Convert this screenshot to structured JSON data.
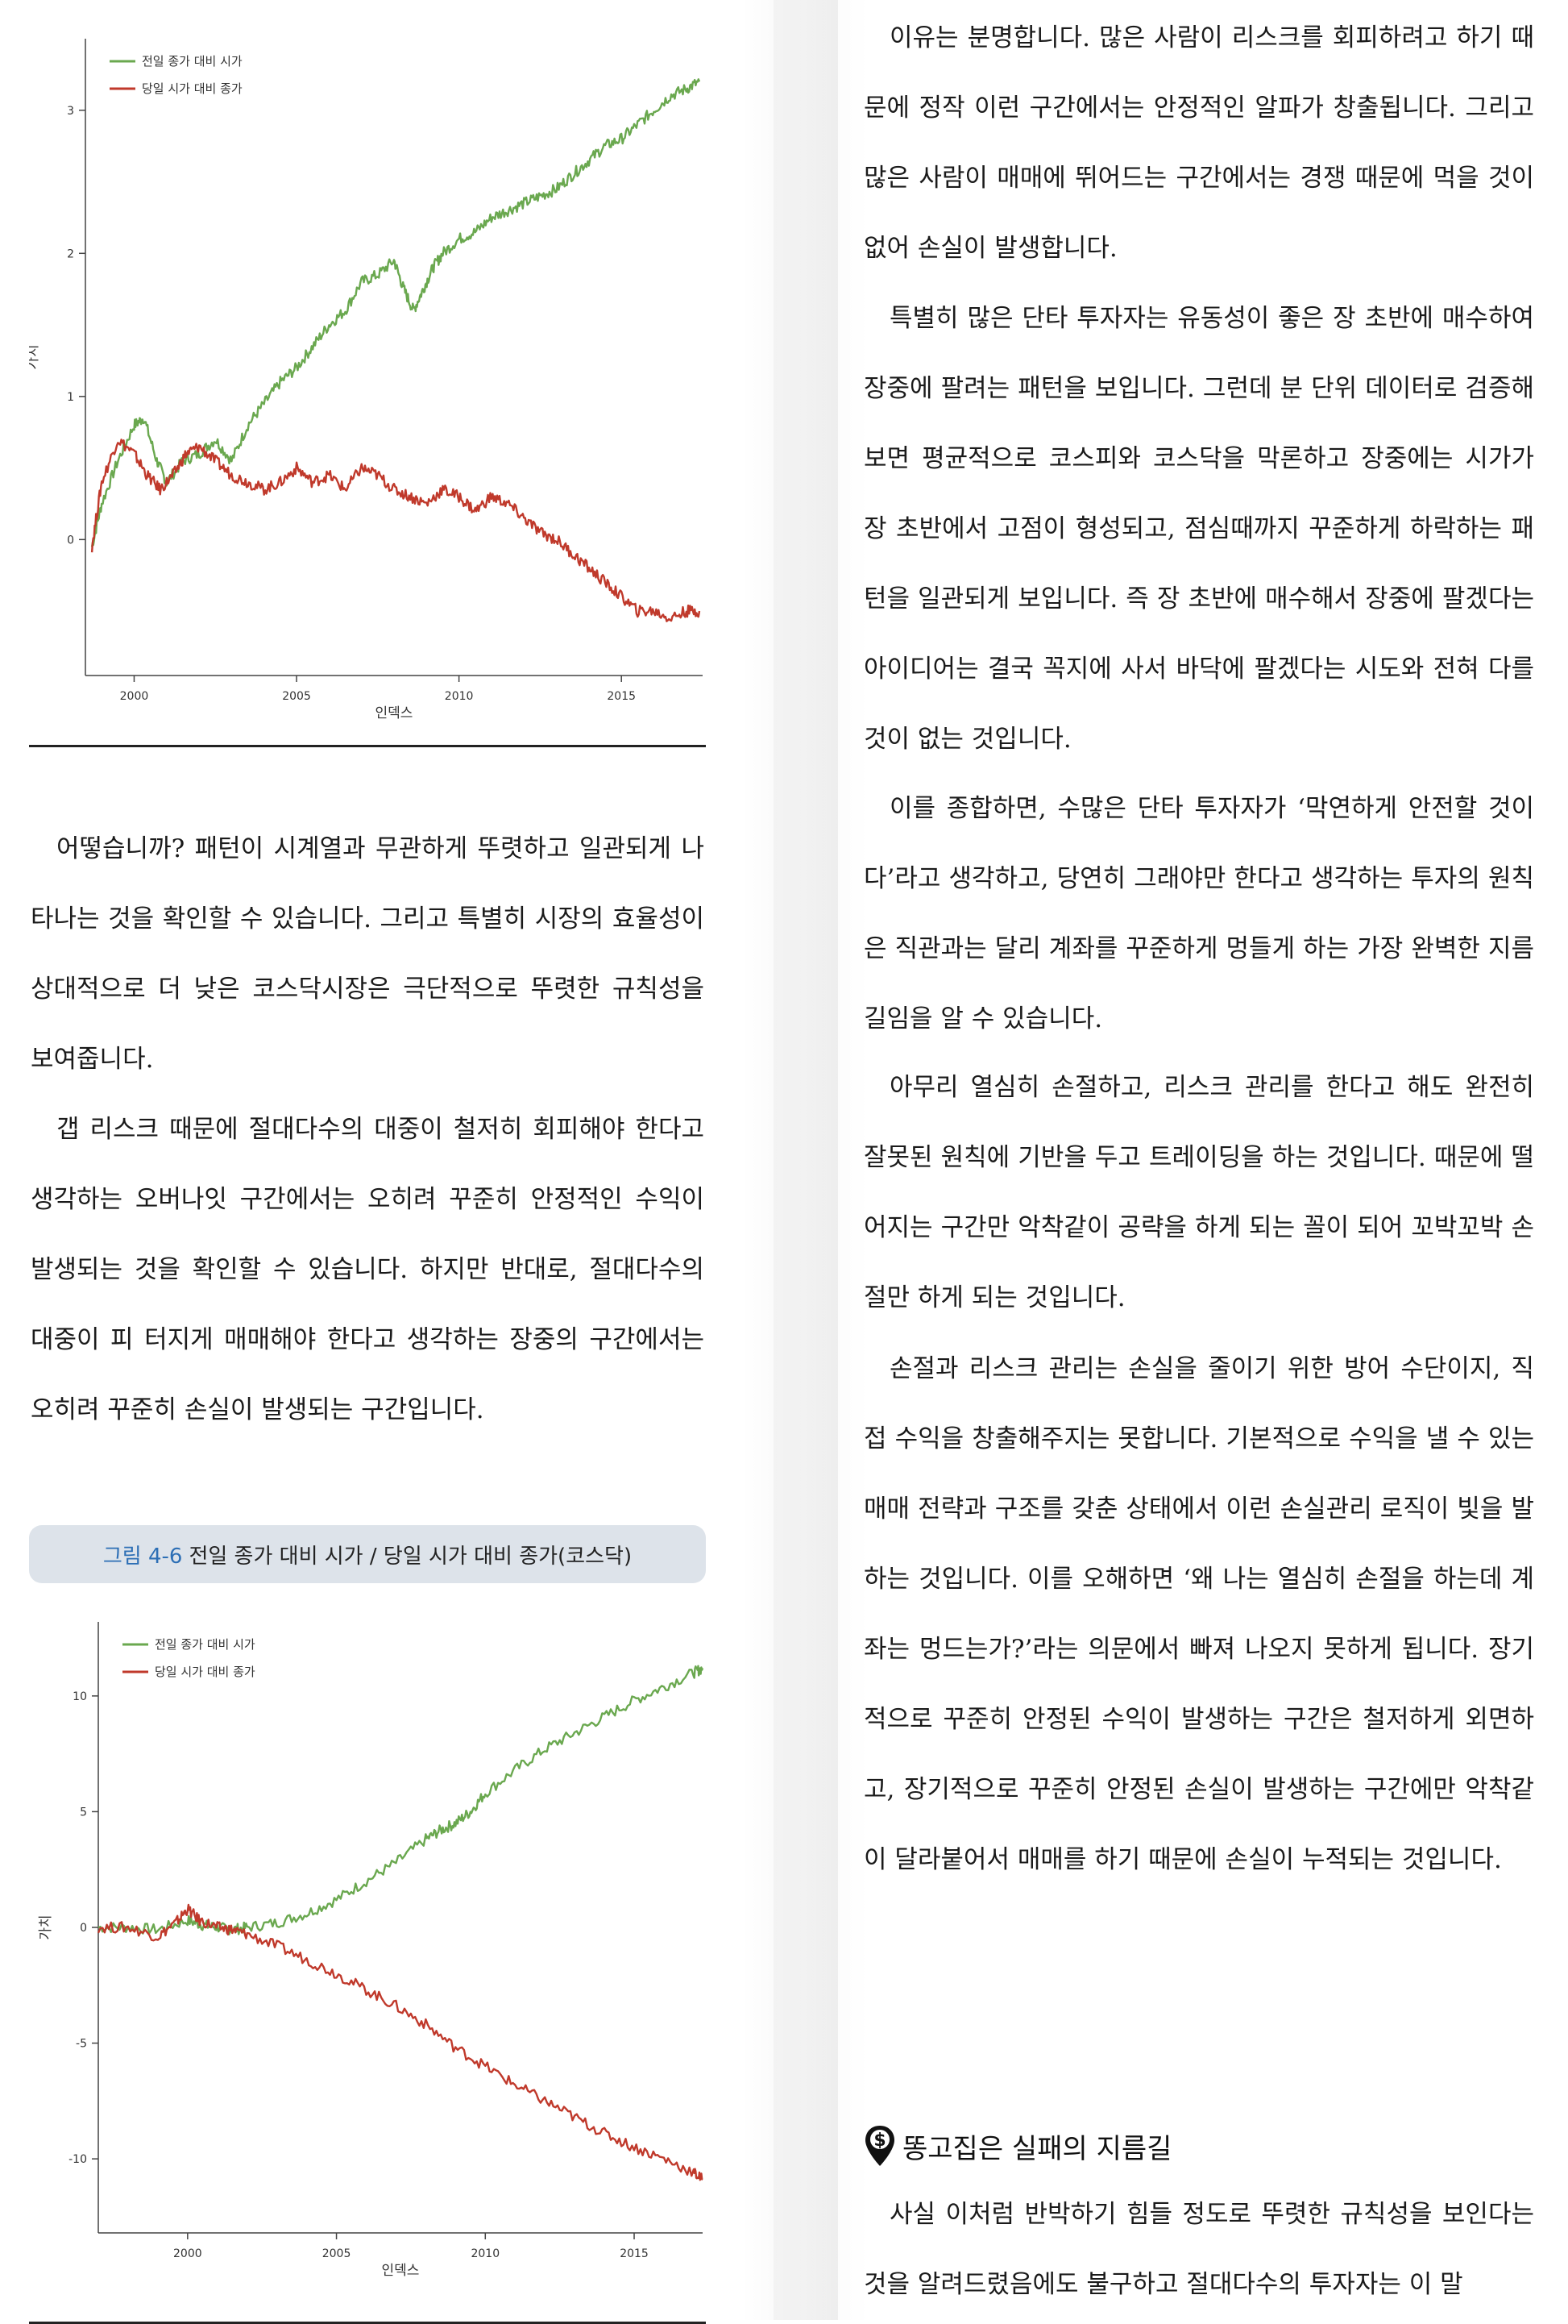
{
  "chart_data": [
    {
      "type": "line",
      "title": "",
      "xlabel": "인덱스",
      "ylabel": "가치",
      "xlim": [
        1998.5,
        2017.5
      ],
      "ylim": [
        -0.95,
        3.5
      ],
      "xticks": [
        2000,
        2005,
        2010,
        2015
      ],
      "yticks": [
        0,
        1,
        2,
        3
      ],
      "legend": "top-left",
      "series": [
        {
          "name": "전일 종가 대비 시가",
          "color": "#6aa84f",
          "x": [
            1998.7,
            1999.0,
            1999.5,
            2000.0,
            2000.3,
            2000.7,
            2001.0,
            2001.5,
            2002.0,
            2002.5,
            2003.0,
            2003.5,
            2004.0,
            2004.5,
            2005.0,
            2005.5,
            2006.0,
            2006.5,
            2007.0,
            2007.5,
            2008.0,
            2008.3,
            2008.6,
            2008.9,
            2009.2,
            2009.5,
            2010.0,
            2010.5,
            2011.0,
            2011.5,
            2012.0,
            2012.5,
            2013.0,
            2013.5,
            2014.0,
            2014.5,
            2015.0,
            2015.5,
            2016.0,
            2016.5,
            2017.0,
            2017.4
          ],
          "values": [
            -0.05,
            0.25,
            0.55,
            0.8,
            0.85,
            0.55,
            0.4,
            0.55,
            0.6,
            0.7,
            0.55,
            0.8,
            0.95,
            1.1,
            1.2,
            1.35,
            1.5,
            1.6,
            1.8,
            1.85,
            1.95,
            1.75,
            1.6,
            1.75,
            1.9,
            2.0,
            2.1,
            2.15,
            2.25,
            2.3,
            2.35,
            2.4,
            2.45,
            2.55,
            2.65,
            2.75,
            2.8,
            2.9,
            3.0,
            3.1,
            3.15,
            3.2
          ]
        },
        {
          "name": "당일 시가 대비 종가",
          "color": "#c0392b",
          "x": [
            1998.7,
            1999.0,
            1999.5,
            2000.0,
            2000.4,
            2000.8,
            2001.2,
            2001.6,
            2002.0,
            2002.5,
            2003.0,
            2003.5,
            2004.0,
            2004.5,
            2005.0,
            2005.5,
            2006.0,
            2006.5,
            2007.0,
            2007.5,
            2008.0,
            2008.5,
            2009.0,
            2009.5,
            2010.0,
            2010.5,
            2011.0,
            2011.5,
            2012.0,
            2012.5,
            2013.0,
            2013.5,
            2014.0,
            2014.5,
            2015.0,
            2015.5,
            2016.0,
            2016.5,
            2017.0,
            2017.4
          ],
          "values": [
            -0.05,
            0.4,
            0.7,
            0.6,
            0.45,
            0.35,
            0.45,
            0.6,
            0.65,
            0.55,
            0.45,
            0.4,
            0.35,
            0.4,
            0.5,
            0.4,
            0.45,
            0.35,
            0.5,
            0.45,
            0.35,
            0.3,
            0.25,
            0.35,
            0.3,
            0.2,
            0.3,
            0.25,
            0.15,
            0.05,
            0.0,
            -0.1,
            -0.2,
            -0.3,
            -0.4,
            -0.5,
            -0.5,
            -0.55,
            -0.5,
            -0.5
          ]
        }
      ]
    },
    {
      "type": "line",
      "title": "",
      "xlabel": "인덱스",
      "ylabel": "가치",
      "xlim": [
        1997.0,
        2017.3
      ],
      "ylim": [
        -13.2,
        13.2
      ],
      "xticks": [
        2000,
        2005,
        2010,
        2015
      ],
      "yticks": [
        -10,
        -5,
        0,
        5,
        10
      ],
      "legend": "top-left",
      "series": [
        {
          "name": "전일 종가 대비 시가",
          "color": "#6aa84f",
          "x": [
            1997.0,
            1998.0,
            1999.0,
            2000.0,
            2000.5,
            2001.0,
            2001.5,
            2002.0,
            2003.0,
            2004.0,
            2005.0,
            2006.0,
            2007.0,
            2008.0,
            2008.5,
            2009.0,
            2009.5,
            2010.0,
            2011.0,
            2012.0,
            2013.0,
            2014.0,
            2015.0,
            2016.0,
            2017.0,
            2017.3
          ],
          "values": [
            0.0,
            0.0,
            -0.1,
            0.3,
            0.1,
            0.0,
            -0.1,
            0.0,
            0.2,
            0.6,
            1.2,
            2.0,
            2.8,
            3.8,
            4.2,
            4.5,
            5.0,
            5.8,
            6.8,
            7.7,
            8.4,
            9.1,
            9.8,
            10.4,
            11.0,
            11.2
          ]
        },
        {
          "name": "당일 시가 대비 종가",
          "color": "#c0392b",
          "x": [
            1997.0,
            1998.0,
            1999.0,
            1999.6,
            2000.0,
            2000.4,
            2001.0,
            2001.5,
            2002.0,
            2003.0,
            2004.0,
            2005.0,
            2006.0,
            2007.0,
            2008.0,
            2009.0,
            2010.0,
            2011.0,
            2012.0,
            2013.0,
            2014.0,
            2015.0,
            2016.0,
            2017.0,
            2017.3
          ],
          "values": [
            0.0,
            0.0,
            -0.4,
            0.2,
            0.8,
            0.3,
            0.0,
            -0.1,
            -0.3,
            -0.8,
            -1.4,
            -2.0,
            -2.7,
            -3.4,
            -4.2,
            -5.2,
            -6.0,
            -6.8,
            -7.5,
            -8.2,
            -8.9,
            -9.5,
            -10.0,
            -10.6,
            -10.9
          ]
        }
      ]
    }
  ],
  "left": {
    "paragraphs": [
      "어떻습니까? 패턴이 시계열과 무관하게 뚜렷하고 일관되게 나타나는 것을 확인할 수 있습니다. 그리고 특별히 시장의 효율성이 상대적으로 더 낮은 코스닥시장은 극단적으로 뚜렷한 규칙성을 보여줍니다.",
      "갭 리스크 때문에 절대다수의 대중이 철저히 회피해야 한다고 생각하는 오버나잇 구간에서는 오히려 꾸준히 안정적인 수익이 발생되는 것을 확인할 수 있습니다. 하지만 반대로, 절대다수의 대중이 피 터지게 매매해야 한다고 생각하는 장중의 구간에서는 오히려 꾸준히 손실이 발생되는 구간입니다."
    ],
    "caption_number": "그림 4-6",
    "caption_text": "전일 종가 대비 시가 / 당일 시가 대비 종가(코스닥)"
  },
  "right": {
    "paragraphs": [
      "이유는 분명합니다. 많은 사람이 리스크를 회피하려고 하기 때문에 정작 이런 구간에서는 안정적인 알파가 창출됩니다. 그리고 많은 사람이 매매에 뛰어드는 구간에서는 경쟁 때문에 먹을 것이 없어 손실이 발생합니다.",
      "특별히 많은 단타 투자자는 유동성이 좋은 장 초반에 매수하여 장중에 팔려는 패턴을 보입니다. 그런데 분 단위 데이터로 검증해보면 평균적으로 코스피와 코스닥을 막론하고 장중에는 시가가 장 초반에서 고점이 형성되고, 점심때까지 꾸준하게 하락하는 패턴을 일관되게 보입니다. 즉 장 초반에 매수해서 장중에 팔겠다는 아이디어는 결국 꼭지에 사서 바닥에 팔겠다는 시도와 전혀 다를 것이 없는 것입니다.",
      "이를 종합하면, 수많은 단타 투자자가 ‘막연하게 안전할 것이다’라고 생각하고, 당연히 그래야만 한다고 생각하는 투자의 원칙은 직관과는 달리 계좌를 꾸준하게 멍들게 하는 가장 완벽한 지름길임을 알 수 있습니다.",
      "아무리 열심히 손절하고, 리스크 관리를 한다고 해도 완전히 잘못된 원칙에 기반을 두고 트레이딩을 하는 것입니다. 때문에 떨어지는 구간만 악착같이 공략을 하게 되는 꼴이 되어 꼬박꼬박 손절만 하게 되는 것입니다.",
      "손절과 리스크 관리는 손실을 줄이기 위한 방어 수단이지, 직접 수익을 창출해주지는 못합니다. 기본적으로 수익을 낼 수 있는 매매 전략과 구조를 갖춘 상태에서 이런 손실관리 로직이 빛을 발하는 것입니다. 이를 오해하면 ‘왜 나는 열심히 손절을 하는데 계좌는 멍드는가?’라는 의문에서 빠져 나오지 못하게 됩니다. 장기적으로 꾸준히 안정된 수익이 발생하는 구간은 철저하게 외면하고, 장기적으로 꾸준히 안정된 손실이 발생하는 구간에만 악착같이 달라붙어서 매매를 하기 때문에 손실이 누적되는 것입니다."
    ],
    "section_title": "똥고집은 실패의 지름길",
    "section_paragraph": "사실 이처럼 반박하기 힘들 정도로 뚜렷한 규칙성을 보인다는 것을 알려드렸음에도 불구하고 절대다수의 투자자는 이 말"
  }
}
